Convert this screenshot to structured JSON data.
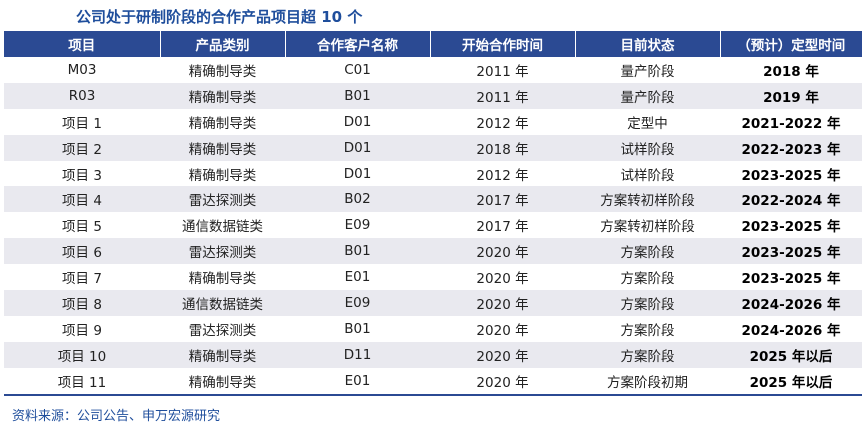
{
  "title": "公司处于研制阶段的合作产品项目超 10 个",
  "table": {
    "headers": [
      "项目",
      "产品类别",
      "合作客户名称",
      "开始合作时间",
      "目前状态",
      "（预计）定型时间"
    ],
    "rows": [
      [
        "M03",
        "精确制导类",
        "C01",
        "2011 年",
        "量产阶段",
        "2018 年"
      ],
      [
        "R03",
        "精确制导类",
        "B01",
        "2011 年",
        "量产阶段",
        "2019 年"
      ],
      [
        "项目 1",
        "精确制导类",
        "D01",
        "2012 年",
        "定型中",
        "2021-2022 年"
      ],
      [
        "项目 2",
        "精确制导类",
        "D01",
        "2018 年",
        "试样阶段",
        "2022-2023 年"
      ],
      [
        "项目 3",
        "精确制导类",
        "D01",
        "2012 年",
        "试样阶段",
        "2023-2025 年"
      ],
      [
        "项目 4",
        "雷达探测类",
        "B02",
        "2017 年",
        "方案转初样阶段",
        "2022-2024 年"
      ],
      [
        "项目 5",
        "通信数据链类",
        "E09",
        "2017 年",
        "方案转初样阶段",
        "2023-2025 年"
      ],
      [
        "项目 6",
        "雷达探测类",
        "B01",
        "2020 年",
        "方案阶段",
        "2023-2025 年"
      ],
      [
        "项目 7",
        "精确制导类",
        "E01",
        "2020 年",
        "方案阶段",
        "2023-2025 年"
      ],
      [
        "项目 8",
        "通信数据链类",
        "E09",
        "2020 年",
        "方案阶段",
        "2024-2026 年"
      ],
      [
        "项目 9",
        "雷达探测类",
        "B01",
        "2020 年",
        "方案阶段",
        "2024-2026 年"
      ],
      [
        "项目 10",
        "精确制导类",
        "D11",
        "2020 年",
        "方案阶段",
        "2025 年以后"
      ],
      [
        "项目 11",
        "精确制导类",
        "E01",
        "2020 年",
        "方案阶段初期",
        "2025 年以后"
      ]
    ]
  },
  "source": "资料来源：公司公告、申万宏源研究"
}
